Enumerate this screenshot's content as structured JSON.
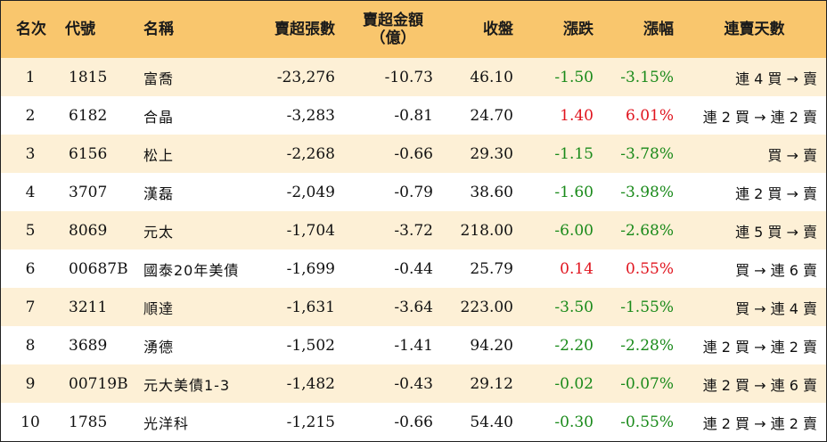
{
  "colors": {
    "header_bg": "#f9c66d",
    "row_alt_bg": "#fdf0d6",
    "down": "#1a8a1a",
    "up": "#e0141e"
  },
  "headers": {
    "rank": "名次",
    "code": "代號",
    "name": "名稱",
    "net_sell_lots": "賣超張數",
    "net_sell_amount_line1": "賣超金額",
    "net_sell_amount_line2": "（億）",
    "close": "收盤",
    "change": "漲跌",
    "change_pct": "漲幅",
    "trend": "連賣天數"
  },
  "rows": [
    {
      "rank": "1",
      "code": "1815",
      "name": "富喬",
      "lots": "-23,276",
      "amount": "-10.73",
      "close": "46.10",
      "change": "-1.50",
      "pct": "-3.15%",
      "dir": "neg",
      "trend": "連 4 買 → 賣"
    },
    {
      "rank": "2",
      "code": "6182",
      "name": "合晶",
      "lots": "-3,283",
      "amount": "-0.81",
      "close": "24.70",
      "change": "1.40",
      "pct": "6.01%",
      "dir": "pos",
      "trend": "連 2 買 → 連 2 賣"
    },
    {
      "rank": "3",
      "code": "6156",
      "name": "松上",
      "lots": "-2,268",
      "amount": "-0.66",
      "close": "29.30",
      "change": "-1.15",
      "pct": "-3.78%",
      "dir": "neg",
      "trend": "買 → 賣"
    },
    {
      "rank": "4",
      "code": "3707",
      "name": "漢磊",
      "lots": "-2,049",
      "amount": "-0.79",
      "close": "38.60",
      "change": "-1.60",
      "pct": "-3.98%",
      "dir": "neg",
      "trend": "連 2 買 → 賣"
    },
    {
      "rank": "5",
      "code": "8069",
      "name": "元太",
      "lots": "-1,704",
      "amount": "-3.72",
      "close": "218.00",
      "change": "-6.00",
      "pct": "-2.68%",
      "dir": "neg",
      "trend": "連 5 買 → 賣"
    },
    {
      "rank": "6",
      "code": "00687B",
      "name": "國泰20年美債",
      "lots": "-1,699",
      "amount": "-0.44",
      "close": "25.79",
      "change": "0.14",
      "pct": "0.55%",
      "dir": "pos",
      "trend": "買 → 連 6 賣"
    },
    {
      "rank": "7",
      "code": "3211",
      "name": "順達",
      "lots": "-1,631",
      "amount": "-3.64",
      "close": "223.00",
      "change": "-3.50",
      "pct": "-1.55%",
      "dir": "neg",
      "trend": "買 → 連 4 賣"
    },
    {
      "rank": "8",
      "code": "3689",
      "name": "湧德",
      "lots": "-1,502",
      "amount": "-1.41",
      "close": "94.20",
      "change": "-2.20",
      "pct": "-2.28%",
      "dir": "neg",
      "trend": "連 2 買 → 連 2 賣"
    },
    {
      "rank": "9",
      "code": "00719B",
      "name": "元大美債1-3",
      "lots": "-1,482",
      "amount": "-0.43",
      "close": "29.12",
      "change": "-0.02",
      "pct": "-0.07%",
      "dir": "neg",
      "trend": "連 2 買 → 連 6 賣"
    },
    {
      "rank": "10",
      "code": "1785",
      "name": "光洋科",
      "lots": "-1,215",
      "amount": "-0.66",
      "close": "54.40",
      "change": "-0.30",
      "pct": "-0.55%",
      "dir": "neg",
      "trend": "連 2 買 → 連 2 賣"
    }
  ]
}
